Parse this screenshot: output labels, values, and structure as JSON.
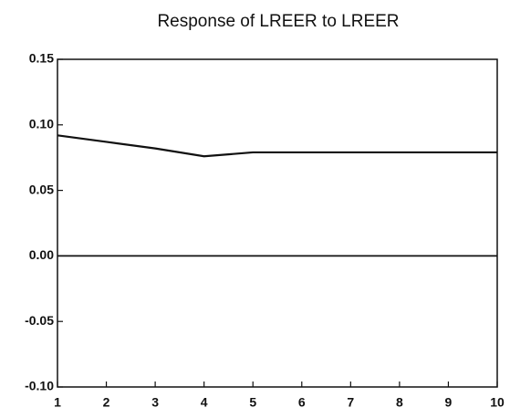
{
  "chart_data": {
    "type": "line",
    "title": "Response of LREER to LREER",
    "x": [
      1,
      2,
      3,
      4,
      5,
      6,
      7,
      8,
      9,
      10
    ],
    "series": [
      {
        "color": "#111111",
        "values": [
          0.092,
          0.087,
          0.082,
          0.076,
          0.079,
          0.079,
          0.079,
          0.079,
          0.079,
          0.079
        ]
      }
    ],
    "xlim": [
      1,
      10
    ],
    "xticks": [
      1,
      2,
      3,
      4,
      5,
      6,
      7,
      8,
      9,
      10
    ],
    "ylim": [
      -0.1,
      0.15
    ],
    "yticks": [
      0.15,
      {
        "value": 0.1,
        "label": "0.10"
      },
      0.05,
      {
        "value": 0,
        "label": "0.00"
      },
      -0.05,
      {
        "value": -0.1,
        "label": "-0.10"
      }
    ]
  }
}
